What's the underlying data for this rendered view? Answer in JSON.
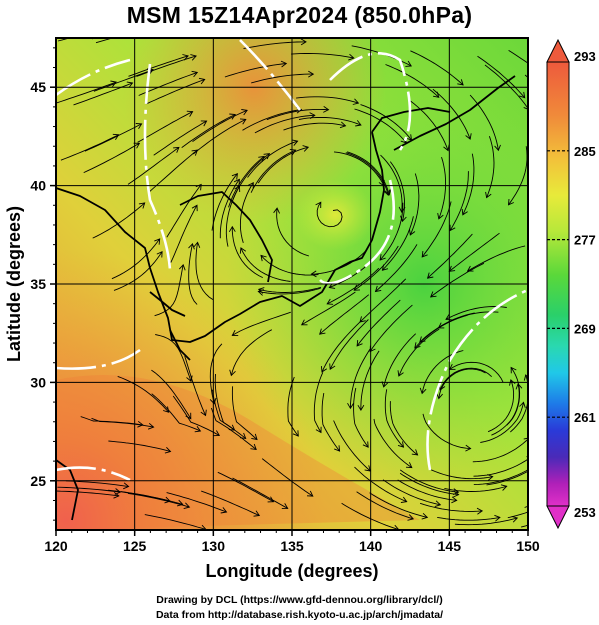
{
  "title": "MSM 15Z14Apr2024 (850.0hPa)",
  "map": {
    "x_label": "Longitude (degrees)",
    "y_label": "Latitude  (degrees)",
    "x_ticks": [
      "120",
      "125",
      "130",
      "135",
      "140",
      "145",
      "150"
    ],
    "y_ticks": [
      "25",
      "30",
      "35",
      "40",
      "45"
    ],
    "lon_range": [
      120,
      150
    ],
    "lat_range": [
      22.5,
      47.5
    ],
    "field": "temperature",
    "overlay": "wind streamlines",
    "contour_color": "#ffffff"
  },
  "colorbar": {
    "labels": [
      "293",
      "285",
      "277",
      "269",
      "261",
      "253"
    ],
    "min": 253,
    "max": 293,
    "colors": [
      "#ee5a3c",
      "#f08a3a",
      "#f2c23a",
      "#e8ea3a",
      "#b8e83a",
      "#5ad83a",
      "#2ad06a",
      "#2ad8b0",
      "#20c8e8",
      "#1e7ae8",
      "#2a3ad8",
      "#4a2ab8",
      "#b020b8",
      "#e030c8"
    ]
  },
  "footer": {
    "line1": "Drawing by DCL (https://www.gfd-dennou.org/library/dcl/)",
    "line2": "Data from http://database.rish.kyoto-u.ac.jp/arch/jmadata/"
  }
}
